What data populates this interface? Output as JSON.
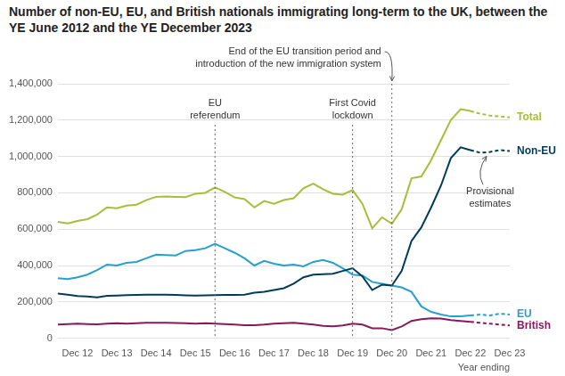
{
  "chart_data": {
    "type": "line",
    "title": "Number of non-EU, EU, and British nationals immigrating long-term to the UK, between the YE June 2012 and the YE December 2023",
    "x_label": "Year ending",
    "categories": [
      null,
      null,
      "Dec 12",
      null,
      null,
      null,
      "Dec 13",
      null,
      null,
      null,
      "Dec 14",
      null,
      null,
      null,
      "Dec 15",
      null,
      null,
      null,
      "Dec 16",
      null,
      null,
      null,
      "Dec 17",
      null,
      null,
      null,
      "Dec 18",
      null,
      null,
      null,
      "Dec 19",
      null,
      null,
      null,
      "Dec 20",
      null,
      null,
      null,
      "Dec 21",
      null,
      null,
      null,
      "Dec 22",
      null,
      null,
      null,
      "Dec 23"
    ],
    "series": [
      {
        "name": "Total",
        "color": "#a8bd3a",
        "line_style": "solid",
        "values": [
          640000,
          632000,
          645000,
          655000,
          680000,
          720000,
          715000,
          730000,
          735000,
          760000,
          778000,
          780000,
          778000,
          776000,
          795000,
          800000,
          830000,
          805000,
          775000,
          765000,
          720000,
          755000,
          740000,
          760000,
          770000,
          825000,
          850000,
          820000,
          795000,
          790000,
          815000,
          740000,
          605000,
          665000,
          630000,
          710000,
          880000,
          890000,
          980000,
          1090000,
          1200000,
          1260000,
          1250000,
          null,
          null,
          null,
          null
        ]
      },
      {
        "name": "Non-EU",
        "color": "#003c57",
        "line_style": "solid",
        "values": [
          245000,
          240000,
          232000,
          230000,
          225000,
          233000,
          235000,
          237000,
          238000,
          240000,
          240000,
          240000,
          238000,
          236000,
          235000,
          236000,
          237000,
          238000,
          238000,
          240000,
          250000,
          255000,
          265000,
          275000,
          300000,
          335000,
          350000,
          352000,
          355000,
          370000,
          385000,
          340000,
          265000,
          295000,
          290000,
          370000,
          535000,
          610000,
          720000,
          840000,
          990000,
          1050000,
          1035000,
          null,
          null,
          null,
          null
        ]
      },
      {
        "name": "EU",
        "color": "#27a0cc",
        "line_style": "solid",
        "values": [
          330000,
          325000,
          335000,
          350000,
          375000,
          405000,
          400000,
          415000,
          420000,
          440000,
          460000,
          458000,
          455000,
          480000,
          485000,
          495000,
          520000,
          495000,
          470000,
          440000,
          400000,
          425000,
          410000,
          400000,
          405000,
          395000,
          420000,
          430000,
          415000,
          385000,
          350000,
          345000,
          310000,
          300000,
          290000,
          280000,
          255000,
          175000,
          145000,
          130000,
          120000,
          120000,
          125000,
          null,
          null,
          null,
          null
        ]
      },
      {
        "name": "British",
        "color": "#871a5b",
        "line_style": "solid",
        "values": [
          75000,
          78000,
          80000,
          78000,
          76000,
          80000,
          82000,
          80000,
          82000,
          85000,
          85000,
          85000,
          84000,
          82000,
          80000,
          82000,
          80000,
          78000,
          75000,
          72000,
          72000,
          75000,
          80000,
          82000,
          85000,
          80000,
          75000,
          68000,
          65000,
          70000,
          80000,
          75000,
          55000,
          55000,
          45000,
          65000,
          95000,
          105000,
          110000,
          108000,
          100000,
          95000,
          90000,
          null,
          null,
          null,
          null
        ]
      },
      {
        "name": "Total",
        "color": "#a8bd3a",
        "line_style": "dashed",
        "values": [
          null,
          null,
          null,
          null,
          null,
          null,
          null,
          null,
          null,
          null,
          null,
          null,
          null,
          null,
          null,
          null,
          null,
          null,
          null,
          null,
          null,
          null,
          null,
          null,
          null,
          null,
          null,
          null,
          null,
          null,
          null,
          null,
          null,
          null,
          null,
          null,
          null,
          null,
          null,
          null,
          null,
          null,
          1250000,
          1235000,
          1225000,
          1220000,
          1215000
        ]
      },
      {
        "name": "Non-EU",
        "color": "#003c57",
        "line_style": "dashed",
        "values": [
          null,
          null,
          null,
          null,
          null,
          null,
          null,
          null,
          null,
          null,
          null,
          null,
          null,
          null,
          null,
          null,
          null,
          null,
          null,
          null,
          null,
          null,
          null,
          null,
          null,
          null,
          null,
          null,
          null,
          null,
          null,
          null,
          null,
          null,
          null,
          null,
          null,
          null,
          null,
          null,
          null,
          null,
          1035000,
          1020000,
          1025000,
          1035000,
          1030000
        ]
      },
      {
        "name": "EU",
        "color": "#27a0cc",
        "line_style": "dashed",
        "values": [
          null,
          null,
          null,
          null,
          null,
          null,
          null,
          null,
          null,
          null,
          null,
          null,
          null,
          null,
          null,
          null,
          null,
          null,
          null,
          null,
          null,
          null,
          null,
          null,
          null,
          null,
          null,
          null,
          null,
          null,
          null,
          null,
          null,
          null,
          null,
          null,
          null,
          null,
          null,
          null,
          null,
          null,
          125000,
          130000,
          125000,
          135000,
          130000
        ]
      },
      {
        "name": "British",
        "color": "#871a5b",
        "line_style": "dashed",
        "values": [
          null,
          null,
          null,
          null,
          null,
          null,
          null,
          null,
          null,
          null,
          null,
          null,
          null,
          null,
          null,
          null,
          null,
          null,
          null,
          null,
          null,
          null,
          null,
          null,
          null,
          null,
          null,
          null,
          null,
          null,
          null,
          null,
          null,
          null,
          null,
          null,
          null,
          null,
          null,
          null,
          null,
          null,
          90000,
          85000,
          80000,
          75000,
          70000
        ]
      }
    ],
    "ylim": [
      0,
      1400000
    ],
    "yticks": [
      0,
      {
        "value": 200000,
        "label": "200,000"
      },
      {
        "value": 400000,
        "label": "400,000"
      },
      {
        "value": 600000,
        "label": "600,000"
      },
      {
        "value": 800000,
        "label": "800,000"
      },
      {
        "value": 1000000,
        "label": "1,000,000"
      },
      {
        "value": 1200000,
        "label": "1,200,000"
      },
      {
        "value": 1400000,
        "label": "1,400,000"
      }
    ],
    "grid": true,
    "annotations": [
      {
        "text": [
          "EU",
          "referendum"
        ],
        "at": 16
      },
      {
        "text": [
          "First Covid",
          "lockdown"
        ],
        "at": 30
      },
      {
        "text": [
          "End of the EU transition period and",
          "introduction of the new immigration system"
        ],
        "at": 34
      }
    ],
    "note": {
      "text": [
        "Provisional",
        "estimates"
      ],
      "at": 44
    }
  }
}
